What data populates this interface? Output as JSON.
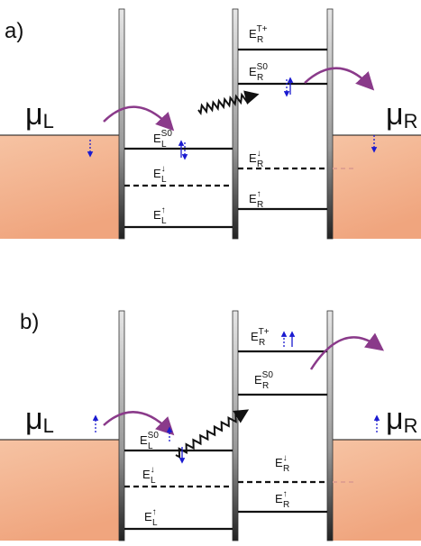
{
  "panels": [
    {
      "label": "a)",
      "mu_left": {
        "symbol": "μ",
        "sub": "L"
      },
      "mu_right": {
        "symbol": "μ",
        "sub": "R"
      },
      "levels": [
        {
          "base": "E",
          "sub": "L",
          "sup": "S0"
        },
        {
          "base": "E",
          "sub": "L",
          "sup": "↓"
        },
        {
          "base": "E",
          "sub": "L",
          "sup": "↑"
        },
        {
          "base": "E",
          "sub": "R",
          "sup": "T+"
        },
        {
          "base": "E",
          "sub": "R",
          "sup": "S0"
        },
        {
          "base": "E",
          "sub": "R",
          "sup": "↓"
        },
        {
          "base": "E",
          "sub": "R",
          "sup": "↑"
        }
      ]
    },
    {
      "label": "b)",
      "mu_left": {
        "symbol": "μ",
        "sub": "L"
      },
      "mu_right": {
        "symbol": "μ",
        "sub": "R"
      },
      "levels": [
        {
          "base": "E",
          "sub": "L",
          "sup": "S0"
        },
        {
          "base": "E",
          "sub": "L",
          "sup": "↓"
        },
        {
          "base": "E",
          "sub": "L",
          "sup": "↑"
        },
        {
          "base": "E",
          "sub": "R",
          "sup": "T+"
        },
        {
          "base": "E",
          "sub": "R",
          "sup": "S0"
        },
        {
          "base": "E",
          "sub": "R",
          "sup": "↓"
        },
        {
          "base": "E",
          "sub": "R",
          "sup": "↑"
        }
      ]
    }
  ]
}
